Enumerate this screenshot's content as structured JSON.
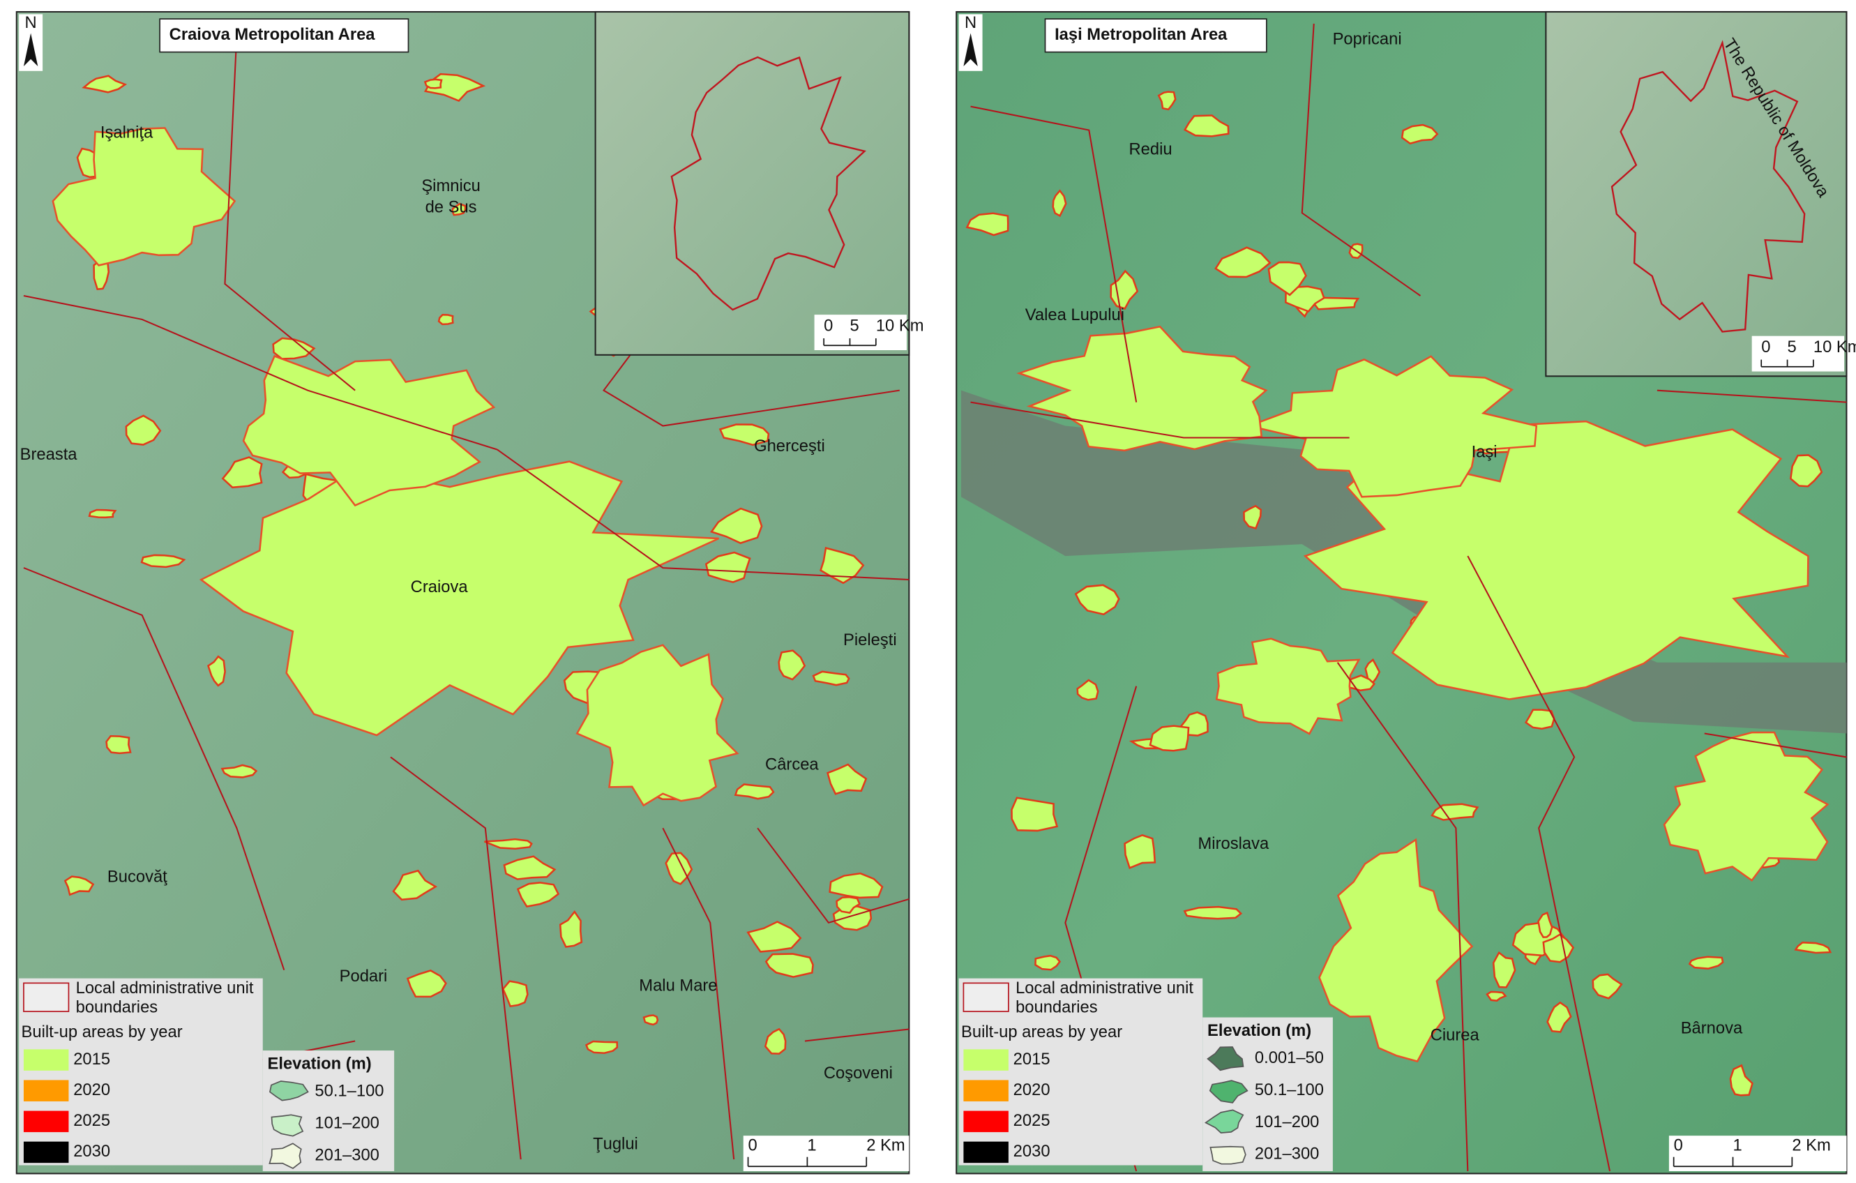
{
  "maps": [
    {
      "title": "Craiova Metropolitan Area",
      "north": "N",
      "places": [
        {
          "lines": [
            "Işalniţa"
          ]
        },
        {
          "lines": [
            "Şimnicu",
            "de Sus"
          ]
        },
        {
          "lines": [
            "Breasta"
          ]
        },
        {
          "lines": [
            "Gherceşti"
          ]
        },
        {
          "lines": [
            "Craiova"
          ]
        },
        {
          "lines": [
            "Pieleşti"
          ]
        },
        {
          "lines": [
            "Cârcea"
          ]
        },
        {
          "lines": [
            "Bucovăţ"
          ]
        },
        {
          "lines": [
            "Podari"
          ]
        },
        {
          "lines": [
            "Malu Mare"
          ]
        },
        {
          "lines": [
            "Coşoveni"
          ]
        },
        {
          "lines": [
            "Ţuglui"
          ]
        }
      ],
      "legend": {
        "boundary": [
          "Local administrative unit",
          "boundaries"
        ],
        "builtup_title": "Built-up areas by year",
        "years": [
          "2015",
          "2020",
          "2025",
          "2030"
        ]
      },
      "elevation": {
        "title": "Elevation (m)",
        "classes": [
          "50.1–100",
          "101–200",
          "201–300"
        ]
      },
      "scale": [
        "0",
        "1",
        "2 Km"
      ],
      "inset_scale": [
        "0",
        "5",
        "10 Km"
      ]
    },
    {
      "title": "Iaşi Metropolitan Area",
      "north": "N",
      "places": [
        {
          "lines": [
            "Popricani"
          ]
        },
        {
          "lines": [
            "Rediu"
          ]
        },
        {
          "lines": [
            "Valea Lupului"
          ]
        },
        {
          "lines": [
            "Iaşi"
          ]
        },
        {
          "lines": [
            "Miroslava"
          ]
        },
        {
          "lines": [
            "Ciurea"
          ]
        },
        {
          "lines": [
            "Bârnova"
          ]
        }
      ],
      "inset_label": "The Republic of Moldova",
      "legend": {
        "boundary": [
          "Local administrative unit",
          "boundaries"
        ],
        "builtup_title": "Built-up areas by year",
        "years": [
          "2015",
          "2020",
          "2025",
          "2030"
        ]
      },
      "elevation": {
        "title": "Elevation (m)",
        "classes": [
          "0.001–50",
          "50.1–100",
          "101–200",
          "201–300"
        ]
      },
      "scale": [
        "0",
        "1",
        "2 Km"
      ],
      "inset_scale": [
        "0",
        "5",
        "10 Km"
      ]
    }
  ]
}
